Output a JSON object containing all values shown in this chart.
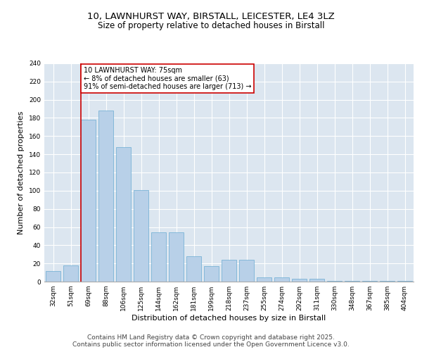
{
  "title_line1": "10, LAWNHURST WAY, BIRSTALL, LEICESTER, LE4 3LZ",
  "title_line2": "Size of property relative to detached houses in Birstall",
  "xlabel": "Distribution of detached houses by size in Birstall",
  "ylabel": "Number of detached properties",
  "categories": [
    "32sqm",
    "51sqm",
    "69sqm",
    "88sqm",
    "106sqm",
    "125sqm",
    "144sqm",
    "162sqm",
    "181sqm",
    "199sqm",
    "218sqm",
    "237sqm",
    "255sqm",
    "274sqm",
    "292sqm",
    "311sqm",
    "330sqm",
    "348sqm",
    "367sqm",
    "385sqm",
    "404sqm"
  ],
  "values": [
    12,
    18,
    178,
    188,
    148,
    101,
    54,
    54,
    28,
    17,
    24,
    24,
    5,
    5,
    3,
    3,
    1,
    1,
    1,
    1,
    1
  ],
  "bar_color": "#b8d0e8",
  "bar_edge_color": "#6aabd2",
  "background_color": "#dce6f0",
  "grid_color": "#ffffff",
  "vline_color": "#cc0000",
  "annotation_text": "10 LAWNHURST WAY: 75sqm\n← 8% of detached houses are smaller (63)\n91% of semi-detached houses are larger (713) →",
  "annotation_box_color": "#cc0000",
  "ylim": [
    0,
    240
  ],
  "yticks": [
    0,
    20,
    40,
    60,
    80,
    100,
    120,
    140,
    160,
    180,
    200,
    220,
    240
  ],
  "footer": "Contains HM Land Registry data © Crown copyright and database right 2025.\nContains public sector information licensed under the Open Government Licence v3.0.",
  "title_fontsize": 9.5,
  "subtitle_fontsize": 8.5,
  "axis_label_fontsize": 8,
  "tick_fontsize": 6.5,
  "annotation_fontsize": 7,
  "footer_fontsize": 6.5
}
